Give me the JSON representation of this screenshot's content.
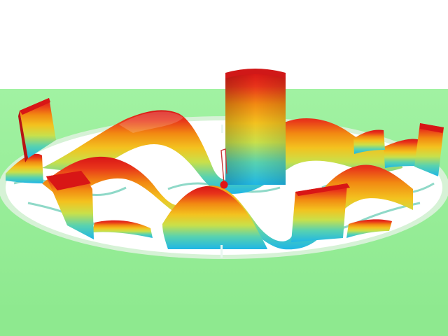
{
  "scene": {
    "background_color": "#ffffff",
    "floor_color": "#99ef9a",
    "floor_edge_color": "#8ee98f",
    "hole_color": "#ffffff",
    "rim_color": "#d6f2d6",
    "colormap": [
      "#1fb6e6",
      "#58d2b0",
      "#c9e04a",
      "#f3c21f",
      "#f28a12",
      "#e8341a",
      "#d81616"
    ],
    "marker_color": "#e21414",
    "trail_color": "#c83838"
  }
}
